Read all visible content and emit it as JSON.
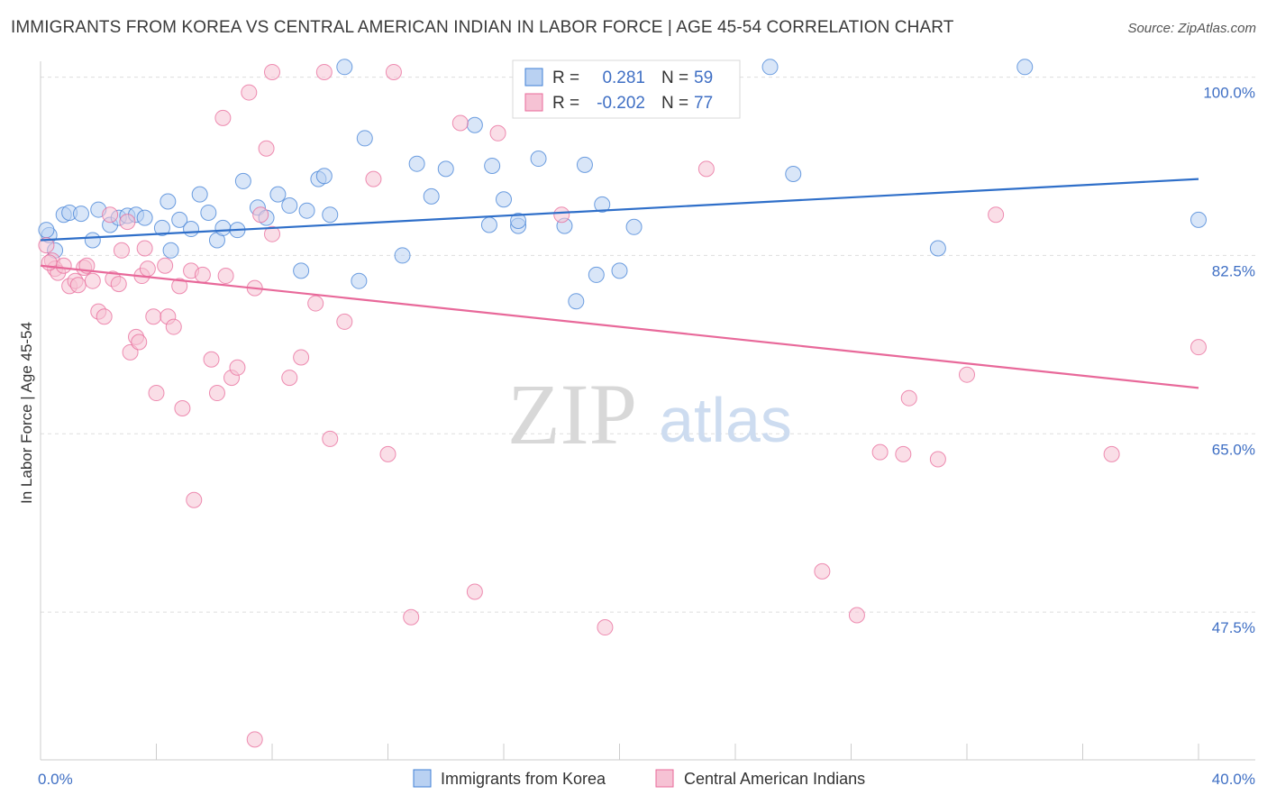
{
  "title": "IMMIGRANTS FROM KOREA VS CENTRAL AMERICAN INDIAN IN LABOR FORCE | AGE 45-54 CORRELATION CHART",
  "source": "Source: ZipAtlas.com",
  "watermark": {
    "zip": "ZIP",
    "atlas": "atlas"
  },
  "colors": {
    "blue": "#3f7fd6",
    "blue_fill": "#b9d1f2",
    "pink": "#e8699a",
    "pink_fill": "#f6c2d4",
    "axis_text": "#3f6fc4"
  },
  "stats": {
    "r_label": "R =",
    "n_label": "N =",
    "rows": [
      {
        "r": "0.281",
        "n": "59",
        "color": "blue"
      },
      {
        "r": "-0.202",
        "n": "77",
        "color": "pink"
      }
    ]
  },
  "chart_data": {
    "type": "scatter",
    "ylabel": "In Labor Force | Age 45-54",
    "xlim": [
      0,
      40
    ],
    "ylim": [
      33,
      102
    ],
    "x_tick_labels": [
      {
        "value": 0,
        "label": "0.0%"
      },
      {
        "value": 40,
        "label": "40.0%"
      }
    ],
    "y_tick_labels": [
      {
        "value": 47.5,
        "label": "47.5%"
      },
      {
        "value": 65.0,
        "label": "65.0%"
      },
      {
        "value": 82.5,
        "label": "82.5%"
      },
      {
        "value": 100.0,
        "label": "100.0%"
      }
    ],
    "grid": "horizontal-dashed",
    "legend_position": "bottom-center",
    "series": [
      {
        "name": "Immigrants from Korea",
        "color": "blue",
        "trend": {
          "x": [
            0,
            40
          ],
          "y": [
            84.0,
            90.0
          ]
        },
        "points": [
          [
            0.3,
            84.5
          ],
          [
            0.5,
            83.0
          ],
          [
            0.8,
            86.5
          ],
          [
            1.0,
            86.7
          ],
          [
            1.4,
            86.6
          ],
          [
            1.8,
            84.0
          ],
          [
            2.0,
            87.0
          ],
          [
            2.4,
            85.5
          ],
          [
            2.7,
            86.2
          ],
          [
            3.0,
            86.4
          ],
          [
            3.3,
            86.5
          ],
          [
            3.6,
            86.2
          ],
          [
            4.2,
            85.2
          ],
          [
            4.4,
            87.8
          ],
          [
            4.5,
            83.0
          ],
          [
            4.8,
            86.0
          ],
          [
            5.2,
            85.1
          ],
          [
            5.5,
            88.5
          ],
          [
            5.8,
            86.7
          ],
          [
            6.1,
            84.0
          ],
          [
            6.3,
            85.2
          ],
          [
            6.8,
            85.0
          ],
          [
            7.0,
            89.8
          ],
          [
            7.5,
            87.2
          ],
          [
            7.8,
            86.2
          ],
          [
            8.2,
            88.5
          ],
          [
            8.6,
            87.4
          ],
          [
            9.0,
            81.0
          ],
          [
            9.2,
            86.9
          ],
          [
            9.6,
            90.0
          ],
          [
            9.8,
            90.3
          ],
          [
            10.0,
            86.5
          ],
          [
            10.5,
            101.0
          ],
          [
            11.0,
            80.0
          ],
          [
            11.2,
            94.0
          ],
          [
            12.5,
            82.5
          ],
          [
            13.0,
            91.5
          ],
          [
            13.5,
            88.3
          ],
          [
            14.0,
            91.0
          ],
          [
            15.0,
            95.3
          ],
          [
            15.5,
            85.5
          ],
          [
            15.6,
            91.3
          ],
          [
            16.0,
            88.0
          ],
          [
            16.5,
            85.4
          ],
          [
            16.5,
            85.9
          ],
          [
            17.2,
            92.0
          ],
          [
            18.1,
            85.4
          ],
          [
            18.5,
            78.0
          ],
          [
            18.8,
            91.4
          ],
          [
            19.2,
            80.6
          ],
          [
            19.4,
            87.5
          ],
          [
            20.0,
            81.0
          ],
          [
            20.5,
            85.3
          ],
          [
            25.2,
            101.0
          ],
          [
            26.0,
            90.5
          ],
          [
            31.0,
            83.2
          ],
          [
            34.0,
            101.0
          ],
          [
            40.0,
            86.0
          ],
          [
            0.2,
            85.0
          ]
        ]
      },
      {
        "name": "Central American Indians",
        "color": "pink",
        "trend": {
          "x": [
            0,
            40
          ],
          "y": [
            81.5,
            69.5
          ]
        },
        "points": [
          [
            0.2,
            83.5
          ],
          [
            0.4,
            82.0
          ],
          [
            0.5,
            81.2
          ],
          [
            0.6,
            80.8
          ],
          [
            0.8,
            81.5
          ],
          [
            1.0,
            79.5
          ],
          [
            1.2,
            80.0
          ],
          [
            1.3,
            79.6
          ],
          [
            1.5,
            81.3
          ],
          [
            1.6,
            81.5
          ],
          [
            1.8,
            80.0
          ],
          [
            2.0,
            77.0
          ],
          [
            2.2,
            76.5
          ],
          [
            2.4,
            86.5
          ],
          [
            2.5,
            80.2
          ],
          [
            2.7,
            79.7
          ],
          [
            2.8,
            83.0
          ],
          [
            3.0,
            85.8
          ],
          [
            3.1,
            73.0
          ],
          [
            3.3,
            74.5
          ],
          [
            3.4,
            74.0
          ],
          [
            3.5,
            80.5
          ],
          [
            3.6,
            83.2
          ],
          [
            3.7,
            81.2
          ],
          [
            3.9,
            76.5
          ],
          [
            4.0,
            69.0
          ],
          [
            4.3,
            81.5
          ],
          [
            4.4,
            76.5
          ],
          [
            4.6,
            75.5
          ],
          [
            4.8,
            79.5
          ],
          [
            4.9,
            67.5
          ],
          [
            5.2,
            81.0
          ],
          [
            5.3,
            58.5
          ],
          [
            5.6,
            80.6
          ],
          [
            5.9,
            72.3
          ],
          [
            6.1,
            69.0
          ],
          [
            6.3,
            96.0
          ],
          [
            6.4,
            80.5
          ],
          [
            6.6,
            70.5
          ],
          [
            6.8,
            71.5
          ],
          [
            7.2,
            98.5
          ],
          [
            7.4,
            79.3
          ],
          [
            7.6,
            86.5
          ],
          [
            7.8,
            93.0
          ],
          [
            8.0,
            84.6
          ],
          [
            8.6,
            70.5
          ],
          [
            9.0,
            72.5
          ],
          [
            9.5,
            77.8
          ],
          [
            10.0,
            64.5
          ],
          [
            10.5,
            76.0
          ],
          [
            11.5,
            90.0
          ],
          [
            12.0,
            63.0
          ],
          [
            12.8,
            47.0
          ],
          [
            14.5,
            95.5
          ],
          [
            15.0,
            49.5
          ],
          [
            15.8,
            94.5
          ],
          [
            17.0,
            98.5
          ],
          [
            18.0,
            86.5
          ],
          [
            19.0,
            98.0
          ],
          [
            19.5,
            46.0
          ],
          [
            21.5,
            100.5
          ],
          [
            23.0,
            91.0
          ],
          [
            27.0,
            51.5
          ],
          [
            28.2,
            47.2
          ],
          [
            29.0,
            63.2
          ],
          [
            29.8,
            63.0
          ],
          [
            30.0,
            68.5
          ],
          [
            31.0,
            62.5
          ],
          [
            32.0,
            70.8
          ],
          [
            33.0,
            86.5
          ],
          [
            37.0,
            63.0
          ],
          [
            40.0,
            73.5
          ],
          [
            7.4,
            35.0
          ],
          [
            8.0,
            100.5
          ],
          [
            9.8,
            100.5
          ],
          [
            12.2,
            100.5
          ],
          [
            0.3,
            81.8
          ]
        ]
      }
    ]
  }
}
